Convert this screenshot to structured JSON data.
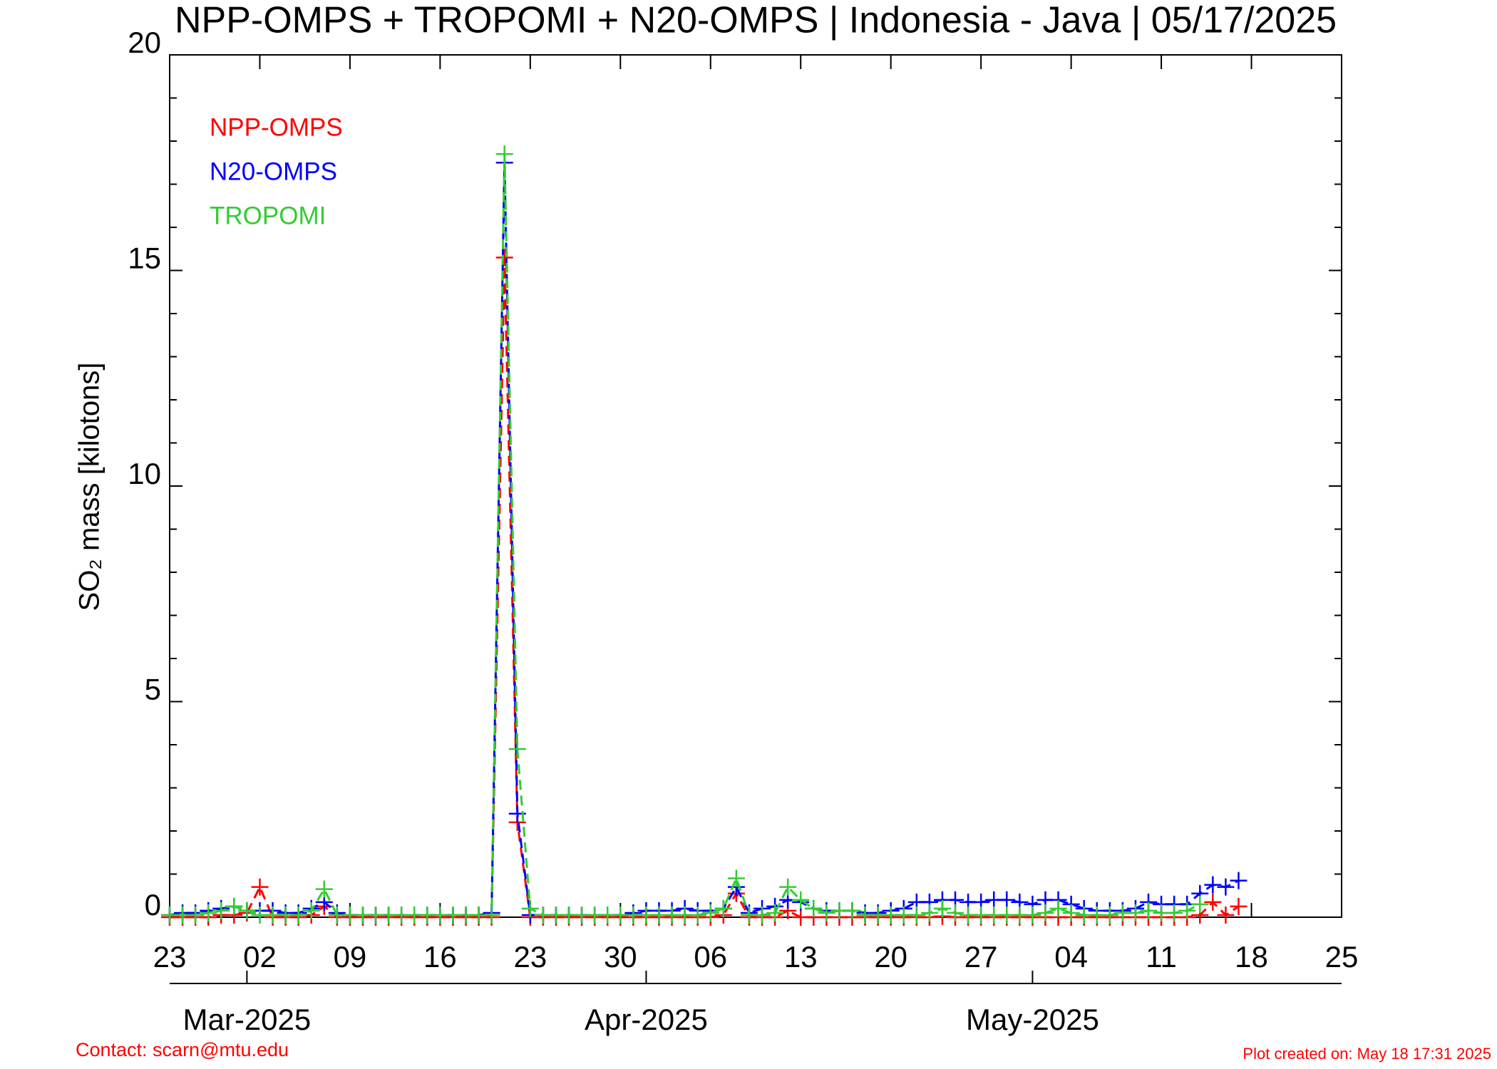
{
  "chart_data": {
    "type": "line",
    "title": "NPP-OMPS + TROPOMI + N20-OMPS | Indonesia - Java | 05/17/2025",
    "ylabel": "SO₂ mass [kilotons]",
    "contact": "Contact: scarn@mtu.edu",
    "created": "Plot created on: May 18 17:31 2025",
    "xlim": [
      "2025-02-23",
      "2025-05-25"
    ],
    "xticks": [
      {
        "value": "2025-02-23",
        "label": "23"
      },
      {
        "value": "2025-03-02",
        "label": "02"
      },
      {
        "value": "2025-03-09",
        "label": "09"
      },
      {
        "value": "2025-03-16",
        "label": "16"
      },
      {
        "value": "2025-03-23",
        "label": "23"
      },
      {
        "value": "2025-03-30",
        "label": "30"
      },
      {
        "value": "2025-04-06",
        "label": "06"
      },
      {
        "value": "2025-04-13",
        "label": "13"
      },
      {
        "value": "2025-04-20",
        "label": "20"
      },
      {
        "value": "2025-04-27",
        "label": "27"
      },
      {
        "value": "2025-05-04",
        "label": "04"
      },
      {
        "value": "2025-05-11",
        "label": "11"
      },
      {
        "value": "2025-05-18",
        "label": "18"
      },
      {
        "value": "2025-05-25",
        "label": "25"
      }
    ],
    "month_ticks": [
      {
        "value": "2025-03-01",
        "label": "Mar-2025"
      },
      {
        "value": "2025-04-01",
        "label": "Apr-2025"
      },
      {
        "value": "2025-05-01",
        "label": "May-2025"
      }
    ],
    "ylim": [
      0,
      20
    ],
    "yticks": [
      0,
      5,
      10,
      15,
      20
    ],
    "minor_yticks": [
      1,
      2,
      3,
      4,
      6,
      7,
      8,
      9,
      11,
      12,
      13,
      14,
      16,
      17,
      18,
      19
    ],
    "x": [
      "2025-02-23",
      "2025-02-24",
      "2025-02-25",
      "2025-02-26",
      "2025-02-27",
      "2025-02-28",
      "2025-03-01",
      "2025-03-02",
      "2025-03-03",
      "2025-03-04",
      "2025-03-05",
      "2025-03-06",
      "2025-03-07",
      "2025-03-08",
      "2025-03-09",
      "2025-03-10",
      "2025-03-11",
      "2025-03-12",
      "2025-03-13",
      "2025-03-14",
      "2025-03-15",
      "2025-03-16",
      "2025-03-17",
      "2025-03-18",
      "2025-03-19",
      "2025-03-20",
      "2025-03-21",
      "2025-03-22",
      "2025-03-23",
      "2025-03-24",
      "2025-03-25",
      "2025-03-26",
      "2025-03-27",
      "2025-03-28",
      "2025-03-29",
      "2025-03-30",
      "2025-03-31",
      "2025-04-01",
      "2025-04-02",
      "2025-04-03",
      "2025-04-04",
      "2025-04-05",
      "2025-04-06",
      "2025-04-07",
      "2025-04-08",
      "2025-04-09",
      "2025-04-10",
      "2025-04-11",
      "2025-04-12",
      "2025-04-13",
      "2025-04-14",
      "2025-04-15",
      "2025-04-16",
      "2025-04-17",
      "2025-04-18",
      "2025-04-19",
      "2025-04-20",
      "2025-04-21",
      "2025-04-22",
      "2025-04-23",
      "2025-04-24",
      "2025-04-25",
      "2025-04-26",
      "2025-04-27",
      "2025-04-28",
      "2025-04-29",
      "2025-04-30",
      "2025-05-01",
      "2025-05-02",
      "2025-05-03",
      "2025-05-04",
      "2025-05-05",
      "2025-05-06",
      "2025-05-07",
      "2025-05-08",
      "2025-05-09",
      "2025-05-10",
      "2025-05-11",
      "2025-05-12",
      "2025-05-13",
      "2025-05-14",
      "2025-05-15",
      "2025-05-16",
      "2025-05-17"
    ],
    "series": [
      {
        "name": "NPP-OMPS",
        "color": "#ff0000",
        "values": [
          0,
          0,
          0,
          0,
          0.05,
          0.05,
          0.1,
          0.7,
          0,
          0,
          0,
          0.05,
          0.25,
          0,
          0,
          0,
          0,
          0,
          0,
          0,
          0,
          0,
          0,
          0,
          0,
          0,
          15.3,
          2.2,
          0,
          0,
          0,
          0,
          0,
          0,
          0,
          0,
          0,
          0,
          0,
          0,
          0,
          0,
          0,
          0.05,
          0.55,
          0,
          0,
          0,
          0.15,
          0,
          0,
          0,
          0,
          0,
          0,
          0,
          0,
          0,
          0,
          0,
          0.02,
          0,
          0,
          0,
          0,
          0,
          0,
          0,
          0,
          0,
          0,
          0,
          0,
          0,
          0,
          0,
          0,
          0,
          0,
          0,
          0.05,
          0.35,
          0.05,
          0.25
        ]
      },
      {
        "name": "N20-OMPS",
        "color": "#0000ff",
        "values": [
          0.05,
          0.1,
          0.1,
          0.15,
          0.2,
          0.25,
          0.15,
          0.15,
          0.15,
          0.1,
          0.1,
          0.2,
          0.35,
          0.1,
          0.05,
          0.05,
          0.05,
          0.05,
          0.05,
          0.05,
          0.05,
          0.05,
          0.05,
          0.05,
          0.05,
          0.1,
          17.5,
          2.4,
          0.05,
          0.05,
          0.05,
          0.05,
          0.05,
          0.05,
          0.05,
          0.05,
          0.1,
          0.15,
          0.15,
          0.15,
          0.2,
          0.15,
          0.15,
          0.2,
          0.7,
          0.1,
          0.2,
          0.25,
          0.4,
          0.35,
          0.2,
          0.15,
          0.15,
          0.15,
          0.1,
          0.1,
          0.15,
          0.2,
          0.35,
          0.35,
          0.4,
          0.4,
          0.35,
          0.35,
          0.4,
          0.4,
          0.35,
          0.3,
          0.4,
          0.4,
          0.3,
          0.2,
          0.15,
          0.15,
          0.15,
          0.2,
          0.35,
          0.3,
          0.3,
          0.3,
          0.55,
          0.75,
          0.7,
          0.85
        ]
      },
      {
        "name": "TROPOMI",
        "color": "#33cc33",
        "values": [
          0.05,
          0.05,
          0.05,
          0.1,
          0.15,
          0.25,
          0.15,
          0.05,
          0.05,
          0.05,
          0.05,
          0.15,
          0.65,
          0.05,
          0.05,
          0.05,
          0.05,
          0.05,
          0.05,
          0.05,
          0.05,
          0.05,
          0.05,
          0.05,
          0.05,
          0.05,
          17.7,
          3.9,
          0.2,
          0.05,
          0.05,
          0.05,
          0.05,
          0.05,
          0.05,
          0.05,
          0.05,
          0.05,
          0.05,
          0.05,
          0.05,
          0.05,
          0.1,
          0.2,
          0.9,
          0.05,
          0.05,
          0.1,
          0.7,
          0.4,
          0.2,
          0.1,
          0.15,
          0.15,
          0.05,
          0.05,
          0.05,
          0.05,
          0.05,
          0.1,
          0.2,
          0.1,
          0.05,
          0.05,
          0.05,
          0.05,
          0.05,
          0.05,
          0.1,
          0.2,
          0.1,
          0.05,
          0.05,
          0.05,
          0.1,
          0.1,
          0.15,
          0.1,
          0.1,
          0.15,
          0.3,
          null,
          null,
          null
        ]
      }
    ]
  }
}
